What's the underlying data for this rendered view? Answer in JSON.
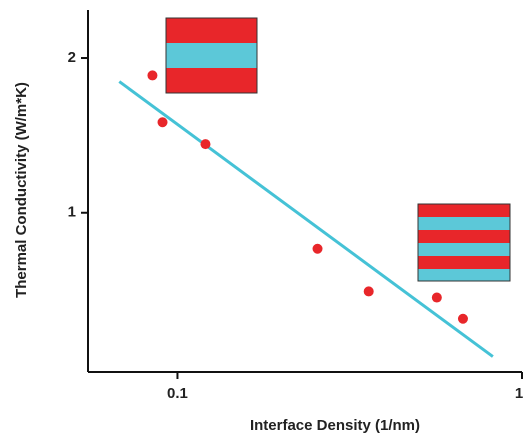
{
  "chart_data": {
    "type": "scatter",
    "x_label": "Interface Density (1/nm)",
    "y_label": "Thermal Conductivity (W/m*K)",
    "xscale": "log",
    "yscale": "log",
    "xlim": [
      0.055,
      1
    ],
    "ylim": [
      0.49,
      2.48
    ],
    "xticks": [
      0.1,
      1
    ],
    "yticks": [
      1,
      2
    ],
    "x": [
      0.0846,
      0.0905,
      0.1206,
      0.255,
      0.359,
      0.566,
      0.674
    ],
    "values": [
      1.85,
      1.5,
      1.36,
      0.851,
      0.703,
      0.684,
      0.622
    ],
    "color": "#e8262a",
    "fit": {
      "x": [
        0.0678,
        0.823
      ],
      "values": [
        1.8,
        0.525
      ],
      "color": "#45c2d6"
    }
  }
}
